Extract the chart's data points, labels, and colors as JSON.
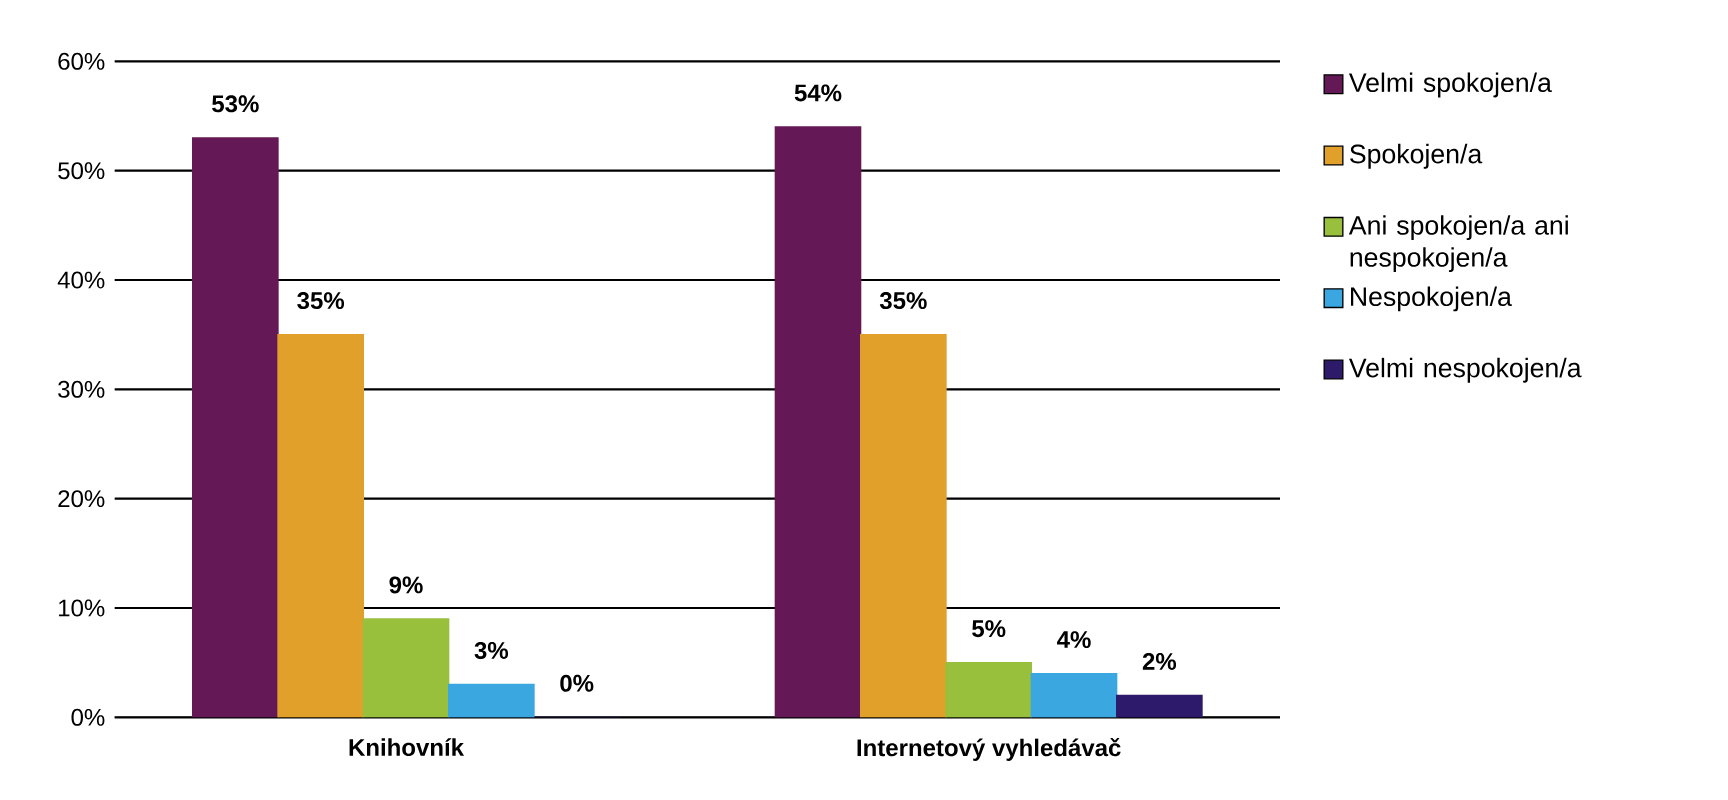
{
  "chart_data": {
    "type": "bar",
    "categories": [
      "Knihovník",
      "Internetový vyhledávač"
    ],
    "series": [
      {
        "name": "Velmi spokojen/a",
        "color": "#651856",
        "values": [
          53,
          54
        ],
        "value_labels": [
          "53%",
          "54%"
        ]
      },
      {
        "name": "Spokojen/a",
        "color": "#e0a02a",
        "values": [
          35,
          35
        ],
        "value_labels": [
          "35%",
          "35%"
        ]
      },
      {
        "name": "Ani spokojen/a ani nespokojen/a",
        "color": "#98c03c",
        "values": [
          9,
          5
        ],
        "value_labels": [
          "9%",
          "5%"
        ]
      },
      {
        "name": "Nespokojen/a",
        "color": "#3ba7e0",
        "values": [
          3,
          4
        ],
        "value_labels": [
          "3%",
          "4%"
        ]
      },
      {
        "name": "Velmi nespokojen/a",
        "color": "#2e1a6a",
        "values": [
          0,
          2
        ],
        "value_labels": [
          "0%",
          "2%"
        ]
      }
    ],
    "ylim": [
      0,
      60
    ],
    "yticks": [
      {
        "value": 0,
        "label": "0%"
      },
      {
        "value": 10,
        "label": "10%"
      },
      {
        "value": 20,
        "label": "20%"
      },
      {
        "value": 30,
        "label": "30%"
      },
      {
        "value": 40,
        "label": "40%"
      },
      {
        "value": 50,
        "label": "50%"
      },
      {
        "value": 60,
        "label": "60%"
      }
    ],
    "grid": "y",
    "legend": "right"
  }
}
